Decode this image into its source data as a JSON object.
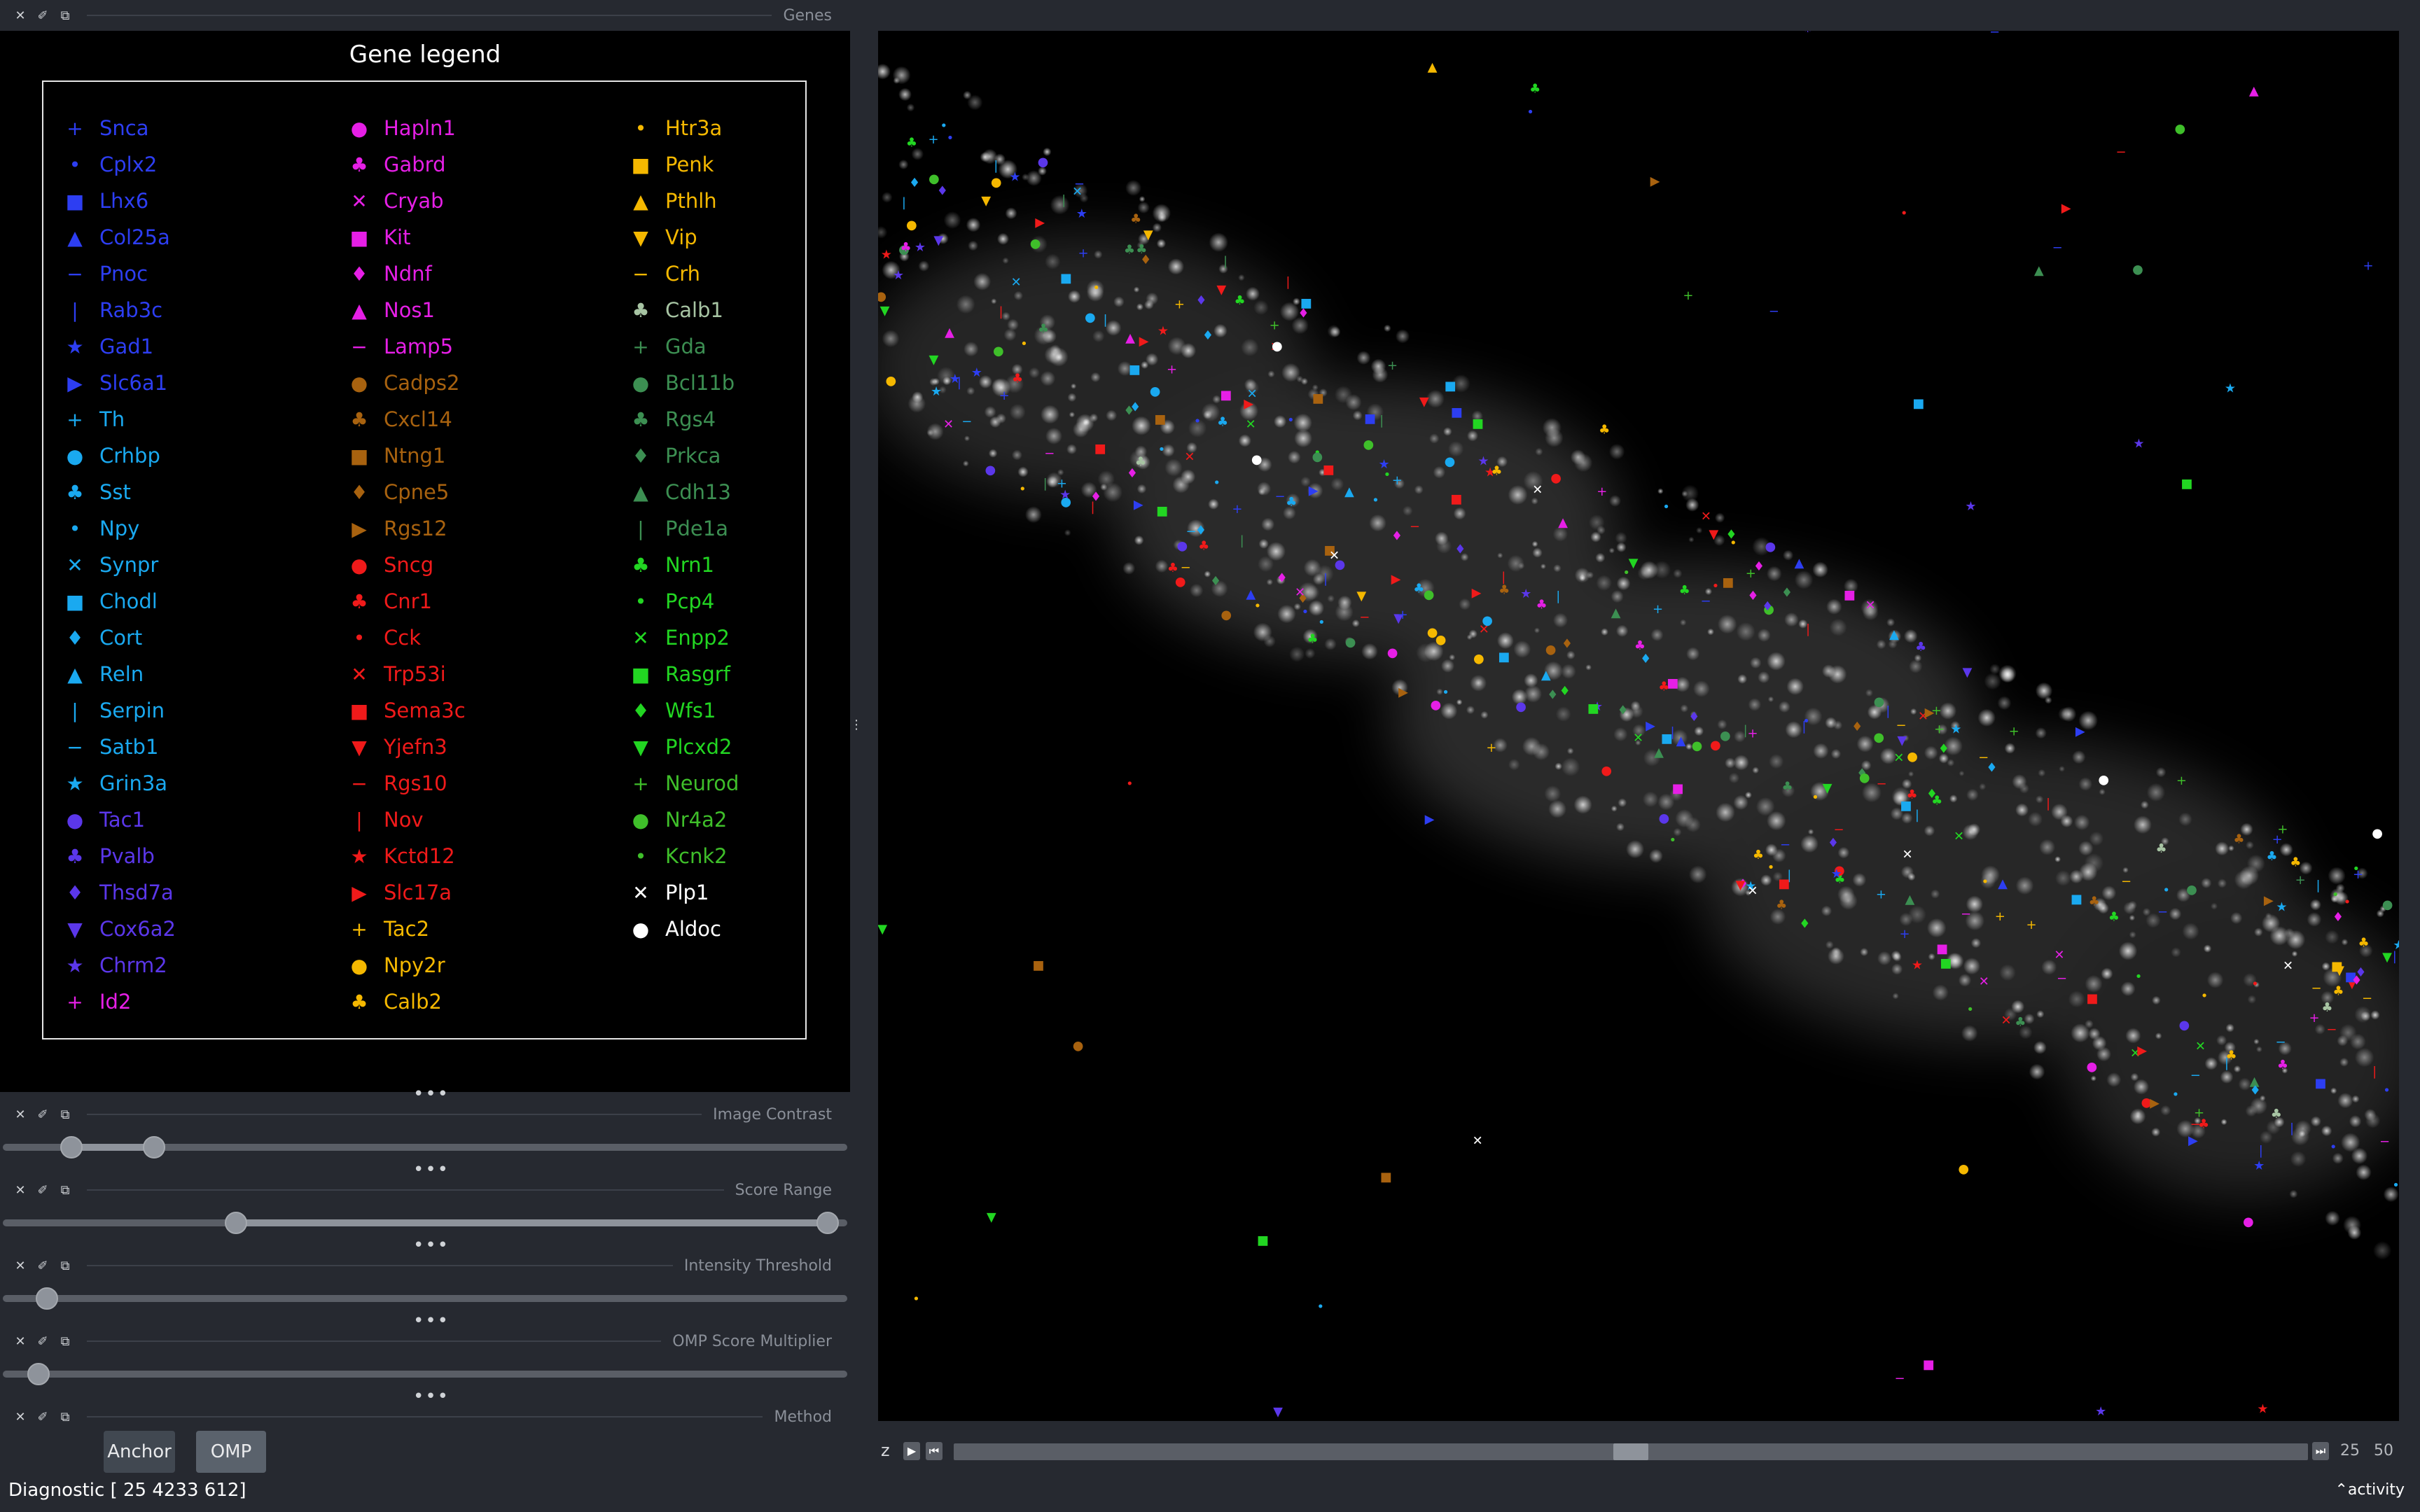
{
  "docks": {
    "genes": {
      "title": "Genes"
    },
    "contrast": {
      "title": "Image Contrast",
      "low": 0.07,
      "high": 0.17
    },
    "score": {
      "title": "Score Range",
      "low": 0.27,
      "high": 0.99
    },
    "intensity": {
      "title": "Intensity Threshold",
      "value": 0.04
    },
    "omp": {
      "title": "OMP Score Multiplier",
      "value": 0.03
    },
    "method": {
      "title": "Method"
    }
  },
  "dock_buttons": {
    "close": "✕",
    "float": "⧉",
    "pin": "✐"
  },
  "more_dots": "•••",
  "legend": {
    "title": "Gene legend",
    "columns": [
      [
        {
          "name": "Snca",
          "marker": "+",
          "color": "#2d3ef2"
        },
        {
          "name": "Cplx2",
          "marker": "•",
          "color": "#2d3ef2"
        },
        {
          "name": "Lhx6",
          "marker": "■",
          "color": "#2d3ef2"
        },
        {
          "name": "Col25a",
          "marker": "▲",
          "color": "#2d3ef2"
        },
        {
          "name": "Pnoc",
          "marker": "−",
          "color": "#2d3ef2"
        },
        {
          "name": "Rab3c",
          "marker": "|",
          "color": "#2d3ef2"
        },
        {
          "name": "Gad1",
          "marker": "★",
          "color": "#2d3ef2"
        },
        {
          "name": "Slc6a1",
          "marker": "▶",
          "color": "#2d3ef2"
        },
        {
          "name": "Th",
          "marker": "+",
          "color": "#1aa9f0"
        },
        {
          "name": "Crhbp",
          "marker": "●",
          "color": "#1aa9f0"
        },
        {
          "name": "Sst",
          "marker": "♣",
          "color": "#1aa9f0"
        },
        {
          "name": "Npy",
          "marker": "•",
          "color": "#1aa9f0"
        },
        {
          "name": "Synpr",
          "marker": "✕",
          "color": "#1aa9f0"
        },
        {
          "name": "Chodl",
          "marker": "■",
          "color": "#1aa9f0"
        },
        {
          "name": "Cort",
          "marker": "♦",
          "color": "#1aa9f0"
        },
        {
          "name": "Reln",
          "marker": "▲",
          "color": "#1aa9f0"
        },
        {
          "name": "Serpin",
          "marker": "|",
          "color": "#1aa9f0"
        },
        {
          "name": "Satb1",
          "marker": "−",
          "color": "#1aa9f0"
        },
        {
          "name": "Grin3a",
          "marker": "★",
          "color": "#1aa9f0"
        },
        {
          "name": "Tac1",
          "marker": "●",
          "color": "#5b37ea"
        },
        {
          "name": "Pvalb",
          "marker": "♣",
          "color": "#5b37ea"
        },
        {
          "name": "Thsd7a",
          "marker": "♦",
          "color": "#5b37ea"
        },
        {
          "name": "Cox6a2",
          "marker": "▼",
          "color": "#5b37ea"
        },
        {
          "name": "Chrm2",
          "marker": "★",
          "color": "#5b37ea"
        },
        {
          "name": "Id2",
          "marker": "+",
          "color": "#e61fe6"
        }
      ],
      [
        {
          "name": "Hapln1",
          "marker": "●",
          "color": "#e61fe6"
        },
        {
          "name": "Gabrd",
          "marker": "♣",
          "color": "#e61fe6"
        },
        {
          "name": "Cryab",
          "marker": "✕",
          "color": "#e61fe6"
        },
        {
          "name": "Kit",
          "marker": "■",
          "color": "#e61fe6"
        },
        {
          "name": "Ndnf",
          "marker": "♦",
          "color": "#e61fe6"
        },
        {
          "name": "Nos1",
          "marker": "▲",
          "color": "#e61fe6"
        },
        {
          "name": "Lamp5",
          "marker": "−",
          "color": "#e61fe6"
        },
        {
          "name": "Cadps2",
          "marker": "●",
          "color": "#a8620f"
        },
        {
          "name": "Cxcl14",
          "marker": "♣",
          "color": "#a8620f"
        },
        {
          "name": "Ntng1",
          "marker": "■",
          "color": "#a8620f"
        },
        {
          "name": "Cpne5",
          "marker": "♦",
          "color": "#a8620f"
        },
        {
          "name": "Rgs12",
          "marker": "▶",
          "color": "#a8620f"
        },
        {
          "name": "Sncg",
          "marker": "●",
          "color": "#f01a1a"
        },
        {
          "name": "Cnr1",
          "marker": "♣",
          "color": "#f01a1a"
        },
        {
          "name": "Cck",
          "marker": "•",
          "color": "#f01a1a"
        },
        {
          "name": "Trp53i",
          "marker": "✕",
          "color": "#f01a1a"
        },
        {
          "name": "Sema3c",
          "marker": "■",
          "color": "#f01a1a"
        },
        {
          "name": "Yjefn3",
          "marker": "▼",
          "color": "#f01a1a"
        },
        {
          "name": "Rgs10",
          "marker": "−",
          "color": "#f01a1a"
        },
        {
          "name": "Nov",
          "marker": "|",
          "color": "#f01a1a"
        },
        {
          "name": "Kctd12",
          "marker": "★",
          "color": "#f01a1a"
        },
        {
          "name": "Slc17a",
          "marker": "▶",
          "color": "#f01a1a"
        },
        {
          "name": "Tac2",
          "marker": "+",
          "color": "#f5b800"
        },
        {
          "name": "Npy2r",
          "marker": "●",
          "color": "#f5b800"
        },
        {
          "name": "Calb2",
          "marker": "♣",
          "color": "#f5b800"
        }
      ],
      [
        {
          "name": "Htr3a",
          "marker": "•",
          "color": "#f5b800"
        },
        {
          "name": "Penk",
          "marker": "■",
          "color": "#f5b800"
        },
        {
          "name": "Pthlh",
          "marker": "▲",
          "color": "#f5b800"
        },
        {
          "name": "Vip",
          "marker": "▼",
          "color": "#f5b800"
        },
        {
          "name": "Crh",
          "marker": "−",
          "color": "#f5b800"
        },
        {
          "name": "Calb1",
          "marker": "♣",
          "color": "#a7c4a3"
        },
        {
          "name": "Gda",
          "marker": "+",
          "color": "#3c8f52"
        },
        {
          "name": "Bcl11b",
          "marker": "●",
          "color": "#3c8f52"
        },
        {
          "name": "Rgs4",
          "marker": "♣",
          "color": "#3c8f52"
        },
        {
          "name": "Prkca",
          "marker": "♦",
          "color": "#3c8f52"
        },
        {
          "name": "Cdh13",
          "marker": "▲",
          "color": "#3c8f52"
        },
        {
          "name": "Pde1a",
          "marker": "|",
          "color": "#3c8f52"
        },
        {
          "name": "Nrn1",
          "marker": "♣",
          "color": "#22d622"
        },
        {
          "name": "Pcp4",
          "marker": "•",
          "color": "#22d622"
        },
        {
          "name": "Enpp2",
          "marker": "✕",
          "color": "#22d622"
        },
        {
          "name": "Rasgrf",
          "marker": "■",
          "color": "#22d622"
        },
        {
          "name": "Wfs1",
          "marker": "♦",
          "color": "#22d622"
        },
        {
          "name": "Plcxd2",
          "marker": "▼",
          "color": "#22d622"
        },
        {
          "name": "Neurod",
          "marker": "+",
          "color": "#3fbf2a"
        },
        {
          "name": "Nr4a2",
          "marker": "●",
          "color": "#3fbf2a"
        },
        {
          "name": "Kcnk2",
          "marker": "•",
          "color": "#3fbf2a"
        },
        {
          "name": "Plp1",
          "marker": "✕",
          "color": "#ffffff"
        },
        {
          "name": "Aldoc",
          "marker": "●",
          "color": "#ffffff"
        }
      ]
    ]
  },
  "method": {
    "anchor_label": "Anchor",
    "omp_label": "OMP",
    "selected": "OMP"
  },
  "status_text": "Diagnostic [  25 4233  612]",
  "activity_label": "activity",
  "z_slider": {
    "label": "z",
    "value": 25,
    "max": 50,
    "position": 0.5
  }
}
